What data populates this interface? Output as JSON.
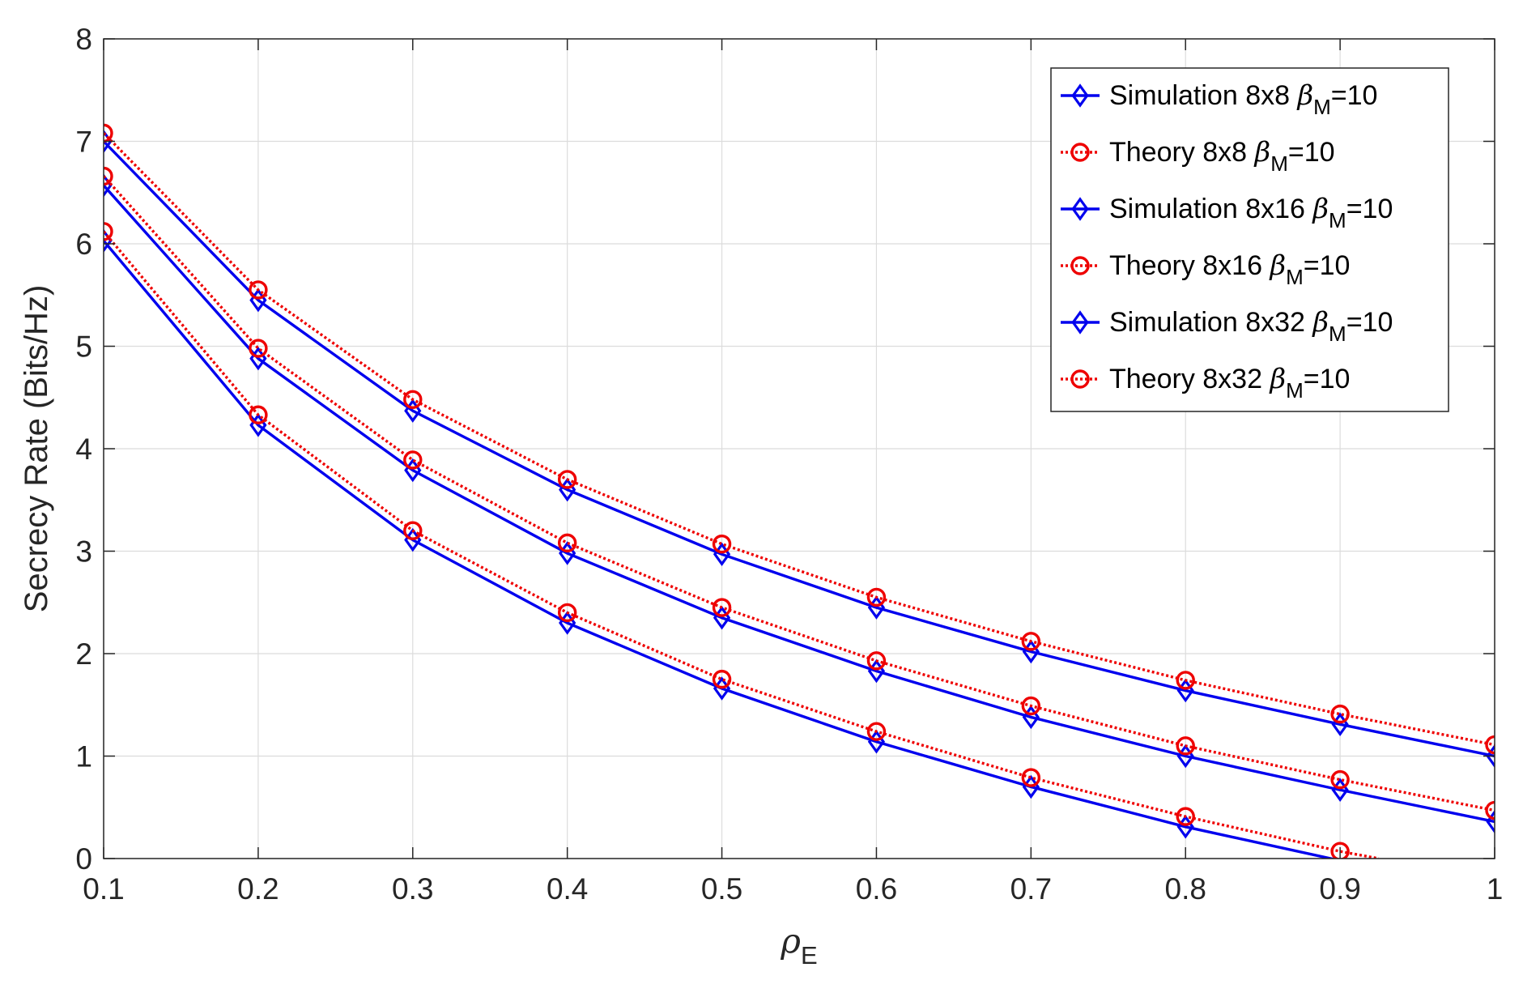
{
  "chart_data": {
    "type": "line",
    "title": "",
    "xlabel": "ρ",
    "xlabel_sub": "E",
    "ylabel": "Secrecy Rate (Bits/Hz)",
    "xlim": [
      0.1,
      1
    ],
    "ylim": [
      0,
      8
    ],
    "xticks": [
      "0.1",
      "0.2",
      "0.3",
      "0.4",
      "0.5",
      "0.6",
      "0.7",
      "0.8",
      "0.9",
      "1"
    ],
    "yticks": [
      "0",
      "1",
      "2",
      "3",
      "4",
      "5",
      "6",
      "7",
      "8"
    ],
    "grid": true,
    "legend_position": "top-right",
    "series": [
      {
        "name": "Simulation 8x8 β_M=10",
        "label_prefix": "Simulation 8x8 ",
        "label_greek": "β",
        "label_sub": "M",
        "label_suffix": "=10",
        "color": "#0000ee",
        "line": "solid",
        "marker": "diamond",
        "x": [
          0.1,
          0.2,
          0.3,
          0.4,
          0.5,
          0.6,
          0.7,
          0.8,
          0.9,
          1.0
        ],
        "y": [
          7.0,
          5.45,
          4.37,
          3.6,
          2.97,
          2.45,
          2.02,
          1.64,
          1.31,
          1.0
        ]
      },
      {
        "name": "Theory 8x8 β_M=10",
        "label_prefix": "Theory 8x8 ",
        "label_greek": "β",
        "label_sub": "M",
        "label_suffix": "=10",
        "color": "#ee0000",
        "line": "dotted",
        "marker": "circle",
        "x": [
          0.1,
          0.2,
          0.3,
          0.4,
          0.5,
          0.6,
          0.7,
          0.8,
          0.9,
          1.0
        ],
        "y": [
          7.08,
          5.55,
          4.48,
          3.7,
          3.07,
          2.55,
          2.12,
          1.74,
          1.41,
          1.11
        ]
      },
      {
        "name": "Simulation 8x16 β_M=10",
        "label_prefix": "Simulation 8x16 ",
        "label_greek": "β",
        "label_sub": "M",
        "label_suffix": "=10",
        "color": "#0000ee",
        "line": "solid",
        "marker": "diamond",
        "x": [
          0.1,
          0.2,
          0.3,
          0.4,
          0.5,
          0.6,
          0.7,
          0.8,
          0.9,
          1.0
        ],
        "y": [
          6.57,
          4.88,
          3.79,
          2.98,
          2.35,
          1.83,
          1.38,
          1.0,
          0.67,
          0.36
        ]
      },
      {
        "name": "Theory 8x16 β_M=10",
        "label_prefix": "Theory 8x16 ",
        "label_greek": "β",
        "label_sub": "M",
        "label_suffix": "=10",
        "color": "#ee0000",
        "line": "dotted",
        "marker": "circle",
        "x": [
          0.1,
          0.2,
          0.3,
          0.4,
          0.5,
          0.6,
          0.7,
          0.8,
          0.9,
          1.0
        ],
        "y": [
          6.66,
          4.98,
          3.89,
          3.08,
          2.45,
          1.93,
          1.49,
          1.1,
          0.77,
          0.47
        ]
      },
      {
        "name": "Simulation 8x32 β_M=10",
        "label_prefix": "Simulation 8x32 ",
        "label_greek": "β",
        "label_sub": "M",
        "label_suffix": "=10",
        "color": "#0000ee",
        "line": "solid",
        "marker": "diamond",
        "x": [
          0.1,
          0.2,
          0.3,
          0.4,
          0.5,
          0.6,
          0.7,
          0.8,
          0.9
        ],
        "y": [
          6.03,
          4.23,
          3.11,
          2.3,
          1.66,
          1.14,
          0.7,
          0.31,
          -0.02
        ]
      },
      {
        "name": "Theory 8x32 β_M=10",
        "label_prefix": "Theory 8x32 ",
        "label_greek": "β",
        "label_sub": "M",
        "label_suffix": "=10",
        "color": "#ee0000",
        "line": "dotted",
        "marker": "circle",
        "x": [
          0.1,
          0.2,
          0.3,
          0.4,
          0.5,
          0.6,
          0.7,
          0.8,
          0.9,
          0.925
        ],
        "y": [
          6.12,
          4.33,
          3.2,
          2.4,
          1.75,
          1.24,
          0.79,
          0.41,
          0.07,
          0.0
        ]
      }
    ]
  }
}
